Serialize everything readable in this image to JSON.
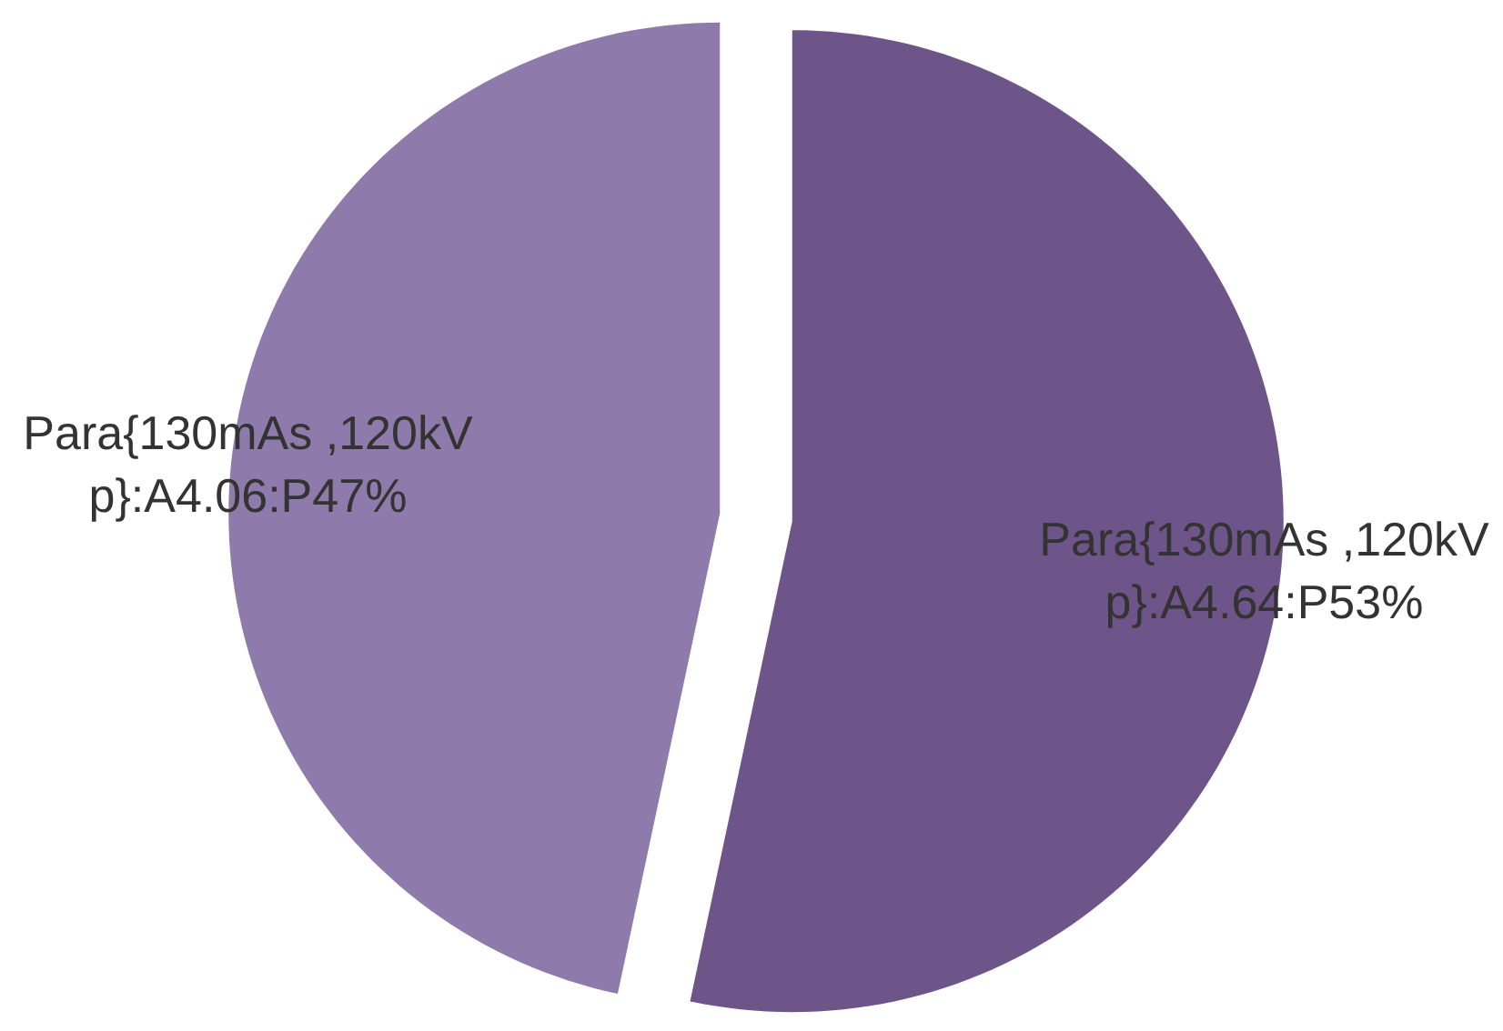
{
  "chart_data": {
    "type": "pie",
    "categories": [
      "Para{130mAs ,120kV p}:A4.64:P53%",
      "Para{130mAs ,120kV p}:A4.06:P47%"
    ],
    "values": [
      4.64,
      4.06
    ],
    "colors": [
      "#6e5589",
      "#8e7aab"
    ],
    "legend": false
  }
}
